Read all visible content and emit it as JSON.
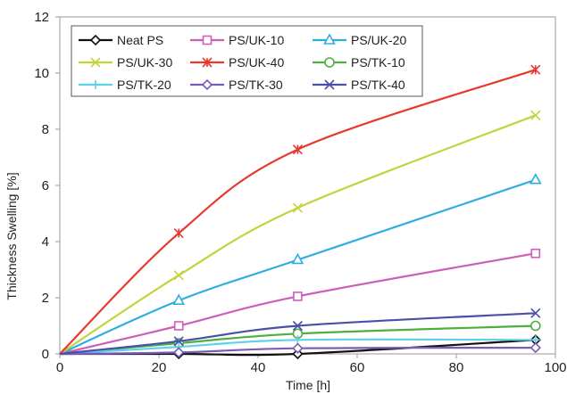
{
  "chart_data": {
    "type": "line",
    "title": "",
    "xlabel": "Time [h]",
    "ylabel": "Thickness Swelling [%]",
    "xlim": [
      0,
      100
    ],
    "ylim": [
      0,
      12
    ],
    "xticks": [
      0,
      20,
      40,
      60,
      80,
      100
    ],
    "yticks": [
      0,
      2,
      4,
      6,
      8,
      10,
      12
    ],
    "grid": false,
    "legend_position": "top-left",
    "legend_columns": 3,
    "x": [
      0,
      24,
      48,
      96
    ],
    "series": [
      {
        "name": "Neat PS",
        "color": "#111111",
        "marker": "diamond",
        "values": [
          0,
          0.0,
          0.0,
          0.5
        ]
      },
      {
        "name": "PS/UK-10",
        "color": "#cc5fb8",
        "marker": "square",
        "values": [
          0,
          1.0,
          2.05,
          3.58
        ]
      },
      {
        "name": "PS/UK-20",
        "color": "#2eaee0",
        "marker": "triangle",
        "values": [
          0,
          1.9,
          3.35,
          6.2
        ]
      },
      {
        "name": "PS/UK-30",
        "color": "#c5d23c",
        "marker": "x",
        "values": [
          0,
          2.8,
          5.2,
          8.5
        ]
      },
      {
        "name": "PS/UK-40",
        "color": "#e8392e",
        "marker": "star",
        "values": [
          0,
          4.3,
          7.28,
          10.12
        ]
      },
      {
        "name": "PS/TK-10",
        "color": "#4fae3f",
        "marker": "circle",
        "values": [
          0,
          0.38,
          0.72,
          1.0
        ]
      },
      {
        "name": "PS/TK-20",
        "color": "#5fd0e8",
        "marker": "plus",
        "values": [
          0,
          0.25,
          0.5,
          0.5
        ]
      },
      {
        "name": "PS/TK-30",
        "color": "#7a5bb8",
        "marker": "diamond",
        "values": [
          0,
          0.05,
          0.2,
          0.22
        ]
      },
      {
        "name": "PS/TK-40",
        "color": "#4a4fa8",
        "marker": "x",
        "values": [
          0,
          0.45,
          1.0,
          1.45
        ]
      }
    ]
  }
}
